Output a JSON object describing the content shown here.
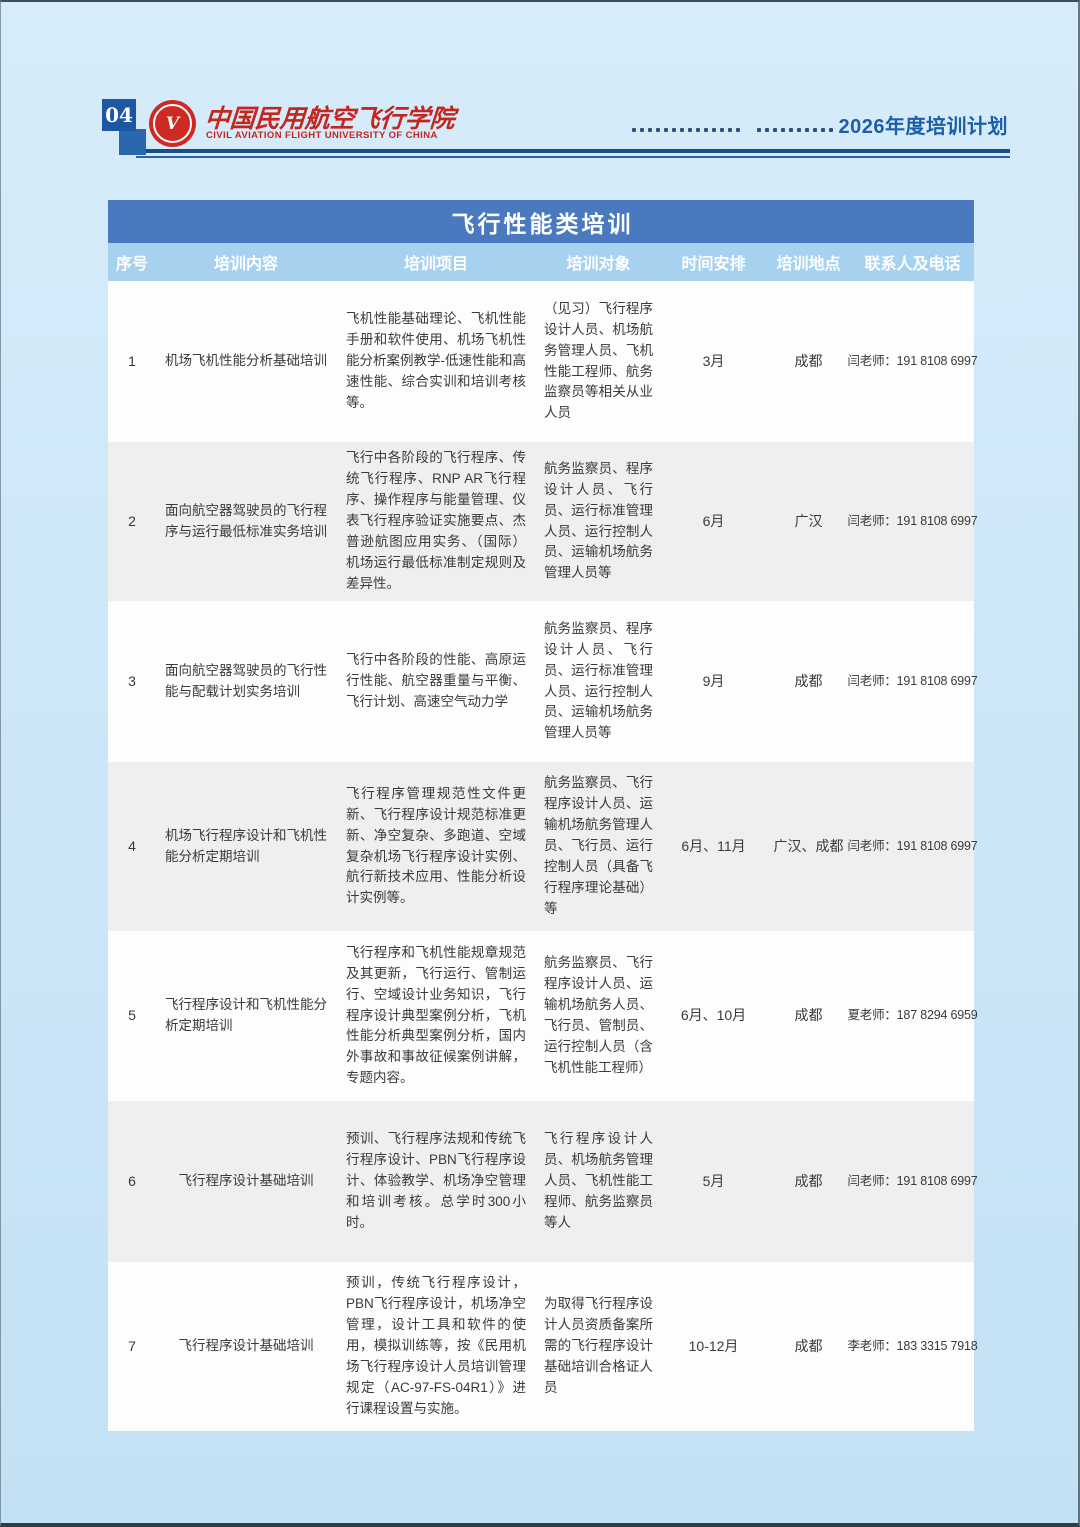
{
  "page": {
    "number": "04",
    "logo_icon": "university-logo",
    "logo_monogram": "V",
    "logo_cn": "中国民用航空飞行学院",
    "logo_en": "CIVIL AVIATION FLIGHT UNIVERSITY OF CHINA",
    "plan_label": "2026年度培训计划"
  },
  "colors": {
    "accent_blue": "#1c5ea9",
    "rule_blue": "#184f88",
    "title_bar_blue": "#4a79c0",
    "header_row_blue": "#a6d2ef",
    "logo_red": "#ce2a23",
    "row_alt_gray": "#efefef",
    "page_bg": "#cfe8f8"
  },
  "table": {
    "title": "飞行性能类培训",
    "columns": [
      "序号",
      "培训内容",
      "培训项目",
      "培训对象",
      "时间安排",
      "培训地点",
      "联系人及电话"
    ],
    "rows": [
      {
        "no": "1",
        "content": "机场飞机性能分析基础培训",
        "project": "飞机性能基础理论、飞机性能手册和软件使用、机场飞机性能分析案例教学-低速性能和高速性能、综合实训和培训考核等。",
        "target": "（见习）飞行程序设计人员、机场航务管理人员、飞机性能工程师、航务监察员等相关从业人员",
        "time": "3月",
        "location": "成都",
        "contact": "闫老师：191 8108 6997"
      },
      {
        "no": "2",
        "content": "面向航空器驾驶员的飞行程序与运行最低标准实务培训",
        "project": "飞行中各阶段的飞行程序、传统飞行程序、RNP AR飞行程序、操作程序与能量管理、仪表飞行程序验证实施要点、杰普逊航图应用实务、（国际）机场运行最低标准制定规则及差异性。",
        "target": "航务监察员、程序设计人员、飞行员、运行标准管理人员、运行控制人员、运输机场航务管理人员等",
        "time": "6月",
        "location": "广汉",
        "contact": "闫老师：191 8108 6997"
      },
      {
        "no": "3",
        "content": "面向航空器驾驶员的飞行性能与配载计划实务培训",
        "project": "飞行中各阶段的性能、高原运行性能、航空器重量与平衡、飞行计划、高速空气动力学",
        "target": "航务监察员、程序设计人员、飞行员、运行标准管理人员、运行控制人员、运输机场航务管理人员等",
        "time": "9月",
        "location": "成都",
        "contact": "闫老师：191 8108 6997"
      },
      {
        "no": "4",
        "content": "机场飞行程序设计和飞机性能分析定期培训",
        "project": "飞行程序管理规范性文件更新、飞行程序设计规范标准更新、净空复杂、多跑道、空域复杂机场飞行程序设计实例、航行新技术应用、性能分析设计实例等。",
        "target": "航务监察员、飞行程序设计人员、运输机场航务管理人员、飞行员、运行控制人员（具备飞行程序理论基础）等",
        "time": "6月、11月",
        "location": "广汉、成都",
        "contact": "闫老师：191 8108 6997"
      },
      {
        "no": "5",
        "content": "飞行程序设计和飞机性能分析定期培训",
        "project": "飞行程序和飞机性能规章规范及其更新，飞行运行、管制运行、空域设计业务知识，飞行程序设计典型案例分析，飞机性能分析典型案例分析，国内外事故和事故征候案例讲解，专题内容。",
        "target": "航务监察员、飞行程序设计人员、运输机场航务人员、飞行员、管制员、运行控制人员（含飞机性能工程师）",
        "time": "6月、10月",
        "location": "成都",
        "contact": "夏老师：187 8294 6959"
      },
      {
        "no": "6",
        "content": "飞行程序设计基础培训",
        "project": "预训、飞行程序法规和传统飞行程序设计、PBN飞行程序设计、体验教学、机场净空管理和培训考核。总学时300小时。",
        "target": "飞行程序设计人员、机场航务管理人员、飞机性能工程师、航务监察员等人",
        "time": "5月",
        "location": "成都",
        "contact": "闫老师：191 8108 6997"
      },
      {
        "no": "7",
        "content": "飞行程序设计基础培训",
        "project": "预训，传统飞行程序设计，PBN飞行程序设计，机场净空管理，设计工具和软件的使用，模拟训练等，按《民用机场飞行程序设计人员培训管理规定（AC-97-FS-04R1）》进行课程设置与实施。",
        "target": "为取得飞行程序设计人员资质备案所需的飞行程序设计基础培训合格证人员",
        "time": "10-12月",
        "location": "成都",
        "contact": "李老师：183 3315 7918"
      }
    ]
  }
}
